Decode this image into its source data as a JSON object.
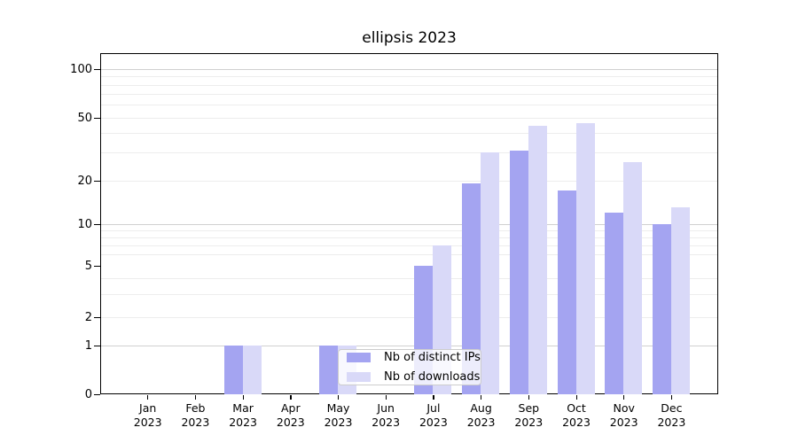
{
  "title": "ellipsis 2023",
  "colors": {
    "ips": "#a4a4f1",
    "downloads": "#d9d9f8",
    "grid_major": "#d0d0d0",
    "grid_minor": "#ededed",
    "axis": "#000000",
    "legend_border": "#cccccc"
  },
  "legend": {
    "items": [
      {
        "label": "Nb of distinct IPs",
        "color_key": "ips"
      },
      {
        "label": "Nb of downloads",
        "color_key": "downloads"
      }
    ]
  },
  "chart_data": {
    "type": "bar",
    "title": "ellipsis 2023",
    "categories": [
      "Jan 2023",
      "Feb 2023",
      "Mar 2023",
      "Apr 2023",
      "May 2023",
      "Jun 2023",
      "Jul 2023",
      "Aug 2023",
      "Sep 2023",
      "Oct 2023",
      "Nov 2023",
      "Dec 2023"
    ],
    "series": [
      {
        "name": "Nb of distinct IPs",
        "key": "ips",
        "values": [
          0,
          0,
          1,
          0,
          1,
          0,
          5,
          19,
          31,
          17,
          12,
          10
        ]
      },
      {
        "name": "Nb of downloads",
        "key": "downloads",
        "values": [
          0,
          0,
          1,
          0,
          1,
          0,
          7,
          30,
          44,
          46,
          26,
          13
        ]
      }
    ],
    "yscale": "symlog",
    "ylim": [
      0,
      127
    ],
    "y_ticks_labeled": [
      0,
      1,
      2,
      5,
      10,
      20,
      50,
      100
    ],
    "y_decade_gridlines": [
      1,
      10,
      100
    ],
    "y_minor_gridlines": [
      2,
      3,
      4,
      6,
      7,
      8,
      9,
      20,
      30,
      40,
      50,
      60,
      70,
      80,
      90
    ],
    "xlabel": "",
    "ylabel": "",
    "grid": true,
    "legend_position": "lower center-left"
  }
}
